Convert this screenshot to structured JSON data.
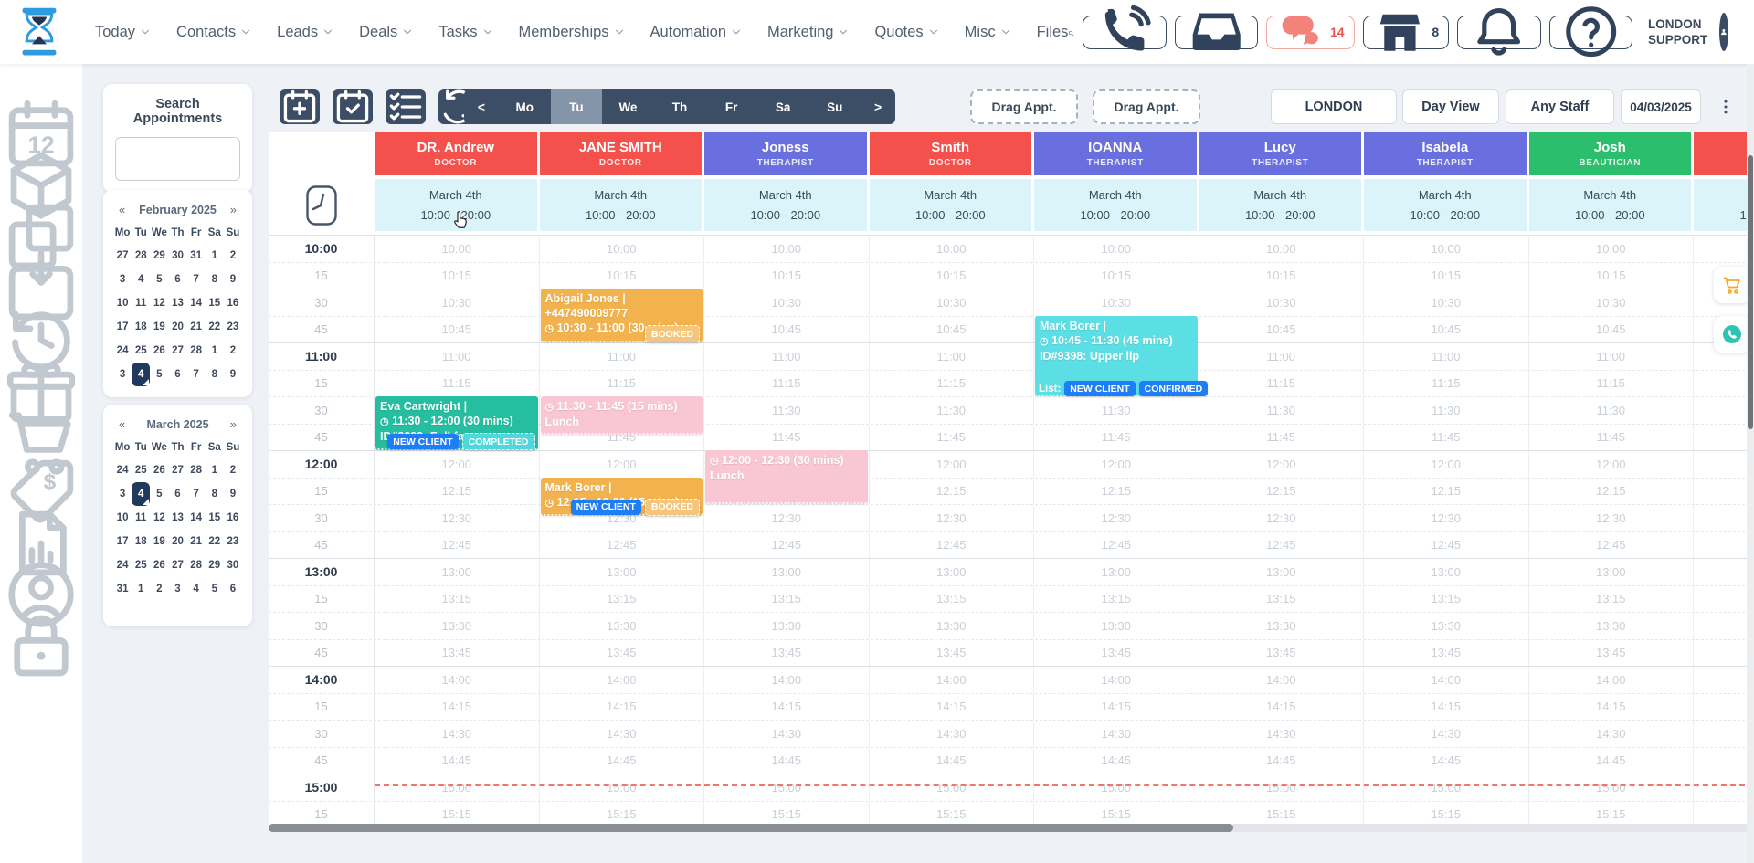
{
  "topbar": {
    "nav_items": [
      {
        "label": "Today",
        "dropdown": true
      },
      {
        "label": "Contacts",
        "dropdown": true
      },
      {
        "label": "Leads",
        "dropdown": true
      },
      {
        "label": "Deals",
        "dropdown": true
      },
      {
        "label": "Tasks",
        "dropdown": true
      },
      {
        "label": "Memberships",
        "dropdown": true
      },
      {
        "label": "Automation",
        "dropdown": true
      },
      {
        "label": "Marketing",
        "dropdown": true
      },
      {
        "label": "Quotes",
        "dropdown": true
      },
      {
        "label": "Misc",
        "dropdown": true
      },
      {
        "label": "Files",
        "dropdown": false
      }
    ],
    "actions": [
      {
        "name": "search-icon",
        "type": "plain"
      },
      {
        "name": "phone-icon",
        "type": "box"
      },
      {
        "name": "inbox-icon",
        "type": "box"
      },
      {
        "name": "chat-icon",
        "type": "box",
        "alert": true,
        "count": "14"
      },
      {
        "name": "store-icon",
        "type": "box",
        "count": "8"
      },
      {
        "name": "bell-icon",
        "type": "box"
      },
      {
        "name": "help-icon",
        "type": "box"
      }
    ],
    "user_label_line1": "LONDON",
    "user_label_line2": "SUPPORT"
  },
  "sidebar_icons": [
    "calendar-date-icon",
    "package-icon",
    "copy-icon",
    "calendar-import-icon",
    "history-icon",
    "gift-icon",
    "cart-icon",
    "price-tag-icon",
    "report-icon",
    "support-icon",
    "lock-icon"
  ],
  "search_panel": {
    "title": "Search Appointments",
    "input_value": ""
  },
  "mini_calendars": [
    {
      "title": "February 2025",
      "prev": "«",
      "next": "»",
      "weekdays": [
        "Mo",
        "Tu",
        "We",
        "Th",
        "Fr",
        "Sa",
        "Su"
      ],
      "weeks": [
        [
          "27",
          "28",
          "29",
          "30",
          "31",
          "1",
          "2"
        ],
        [
          "3",
          "4",
          "5",
          "6",
          "7",
          "8",
          "9"
        ],
        [
          "10",
          "11",
          "12",
          "13",
          "14",
          "15",
          "16"
        ],
        [
          "17",
          "18",
          "19",
          "20",
          "21",
          "22",
          "23"
        ],
        [
          "24",
          "25",
          "26",
          "27",
          "28",
          "1",
          "2"
        ],
        [
          "3",
          "4",
          "5",
          "6",
          "7",
          "8",
          "9"
        ]
      ],
      "selected": [
        5,
        1
      ]
    },
    {
      "title": "March 2025",
      "prev": "«",
      "next": "»",
      "weekdays": [
        "Mo",
        "Tu",
        "We",
        "Th",
        "Fr",
        "Sa",
        "Su"
      ],
      "weeks": [
        [
          "24",
          "25",
          "26",
          "27",
          "28",
          "1",
          "2"
        ],
        [
          "3",
          "4",
          "5",
          "6",
          "7",
          "8",
          "9"
        ],
        [
          "10",
          "11",
          "12",
          "13",
          "14",
          "15",
          "16"
        ],
        [
          "17",
          "18",
          "19",
          "20",
          "21",
          "22",
          "23"
        ],
        [
          "24",
          "25",
          "26",
          "27",
          "28",
          "29",
          "30"
        ],
        [
          "31",
          "1",
          "2",
          "3",
          "4",
          "5",
          "6"
        ]
      ],
      "selected": [
        1,
        1
      ]
    }
  ],
  "toolbar": {
    "icon_buttons": [
      "calendar-plus-icon",
      "calendar-check-icon",
      "checklist-icon",
      "refresh-icon",
      "printer-icon"
    ],
    "day_nav": {
      "prev": "<",
      "days": [
        "Mo",
        "Tu",
        "We",
        "Th",
        "Fr",
        "Sa",
        "Su"
      ],
      "active": "Tu",
      "next": ">"
    },
    "drag_buttons": [
      "Drag Appt.",
      "Drag Appt."
    ],
    "location": "LONDON",
    "view": "Day View",
    "staff_filter": "Any Staff",
    "date": "04/03/2025"
  },
  "schedule": {
    "staff": [
      {
        "name": "DR. Andrew",
        "role": "DOCTOR",
        "color": "#F4514D"
      },
      {
        "name": "JANE SMITH",
        "role": "DOCTOR",
        "color": "#F4514D"
      },
      {
        "name": "Joness",
        "role": "THERAPIST",
        "color": "#6A6FE0"
      },
      {
        "name": "Smith",
        "role": "DOCTOR",
        "color": "#F4514D"
      },
      {
        "name": "IOANNA",
        "role": "THERAPIST",
        "color": "#6A6FE0"
      },
      {
        "name": "Lucy",
        "role": "THERAPIST",
        "color": "#6A6FE0"
      },
      {
        "name": "Isabela",
        "role": "THERAPIST",
        "color": "#6A6FE0"
      },
      {
        "name": "Josh",
        "role": "BEAUTICIAN",
        "color": "#2BBE6C"
      },
      {
        "name": "",
        "role": "",
        "color": "#F4514D"
      }
    ],
    "date_label": "March 4th",
    "work_hours": "10:00 - 20:00",
    "time_range": {
      "start": "10:00",
      "end": "15:15"
    },
    "current_time": "15:00",
    "appointments": [
      {
        "staff": 1,
        "start": "10:30",
        "end": "11:00",
        "color": "#F2B34E",
        "title": "Abigail Jones |",
        "subtitle": "+447490009777",
        "time_text": "10:30 - 11:00 (30 mins)",
        "badges": [
          {
            "text": "BOOKED",
            "type": "booked"
          }
        ],
        "badge_align": "right"
      },
      {
        "staff": 4,
        "start": "10:45",
        "end": "11:30",
        "color": "#5CDFE4",
        "title": "Mark Borer |",
        "time_text": "10:45 - 11:30 (45 mins)",
        "detail": "ID#9398: Upper lip",
        "list_label": "List:",
        "badges": [
          {
            "text": "NEW CLIENT",
            "type": "new"
          },
          {
            "text": "CONFIRMED",
            "type": "confirmed"
          }
        ],
        "badge_align": "left"
      },
      {
        "staff": 0,
        "start": "11:30",
        "end": "12:00",
        "color": "#26BEA0",
        "title": "Eva Cartwright |",
        "time_text": "11:30 - 12:00 (30 mins)",
        "detail": "ID#9399: Full face",
        "badges": [
          {
            "text": "NEW CLIENT",
            "type": "new"
          },
          {
            "text": "COMPLETED",
            "type": "completed"
          }
        ],
        "badge_align": "right"
      },
      {
        "staff": 1,
        "start": "11:30",
        "end": "11:45",
        "color": "#F9C6D3",
        "time_text": "11:30 - 11:45 (15 mins)",
        "detail": "Lunch"
      },
      {
        "staff": 2,
        "start": "12:00",
        "end": "12:30",
        "color": "#F9C6D3",
        "time_text": "12:00 - 12:30 (30 mins)",
        "detail": "Lunch"
      },
      {
        "staff": 1,
        "start": "12:15",
        "end": "12:30",
        "color": "#F2B34E",
        "title": "Mark Borer |",
        "time_text": "12:15 - 12:30 (15 mins)",
        "badges": [
          {
            "text": "NEW CLIENT",
            "type": "new"
          },
          {
            "text": "BOOKED",
            "type": "booked"
          }
        ],
        "badge_align": "right"
      }
    ]
  },
  "colors": {
    "badge_blue": "#1E7EF7",
    "badge_teal": "#4ED8DC",
    "badge_booked": "#F4C57A",
    "now_line": "#F0756B",
    "navy": "#3C4E66",
    "alert_red": "#EF534E"
  }
}
